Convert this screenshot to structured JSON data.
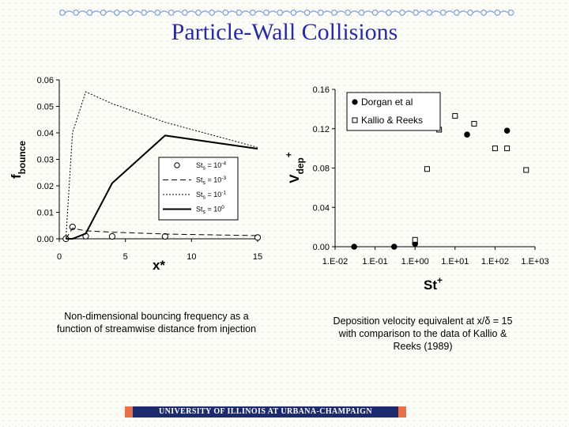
{
  "title": "Particle-Wall Collisions",
  "colors": {
    "title": "#2a2aa6",
    "deco": "#7f9ad4",
    "footer_bg": "#1c2a6e",
    "footer_accent": "#e8704a"
  },
  "chart_data": [
    {
      "type": "line",
      "xlabel": "x*",
      "ylabel": "fbounce",
      "xlim": [
        0,
        15
      ],
      "ylim": [
        0,
        0.06
      ],
      "xticks": [
        "0",
        "5",
        "10",
        "15"
      ],
      "yticks": [
        "0.00",
        "0.01",
        "0.02",
        "0.03",
        "0.04",
        "0.05",
        "0.06"
      ],
      "legend": "center-right",
      "grid": false,
      "series": [
        {
          "name": "Sts = 10-4",
          "label": {
            "base": "St",
            "sub": "s",
            "mid": " = 10",
            "sup": "-4"
          },
          "style": "markers",
          "x": [
            0.5,
            1,
            2,
            4,
            8,
            15
          ],
          "y": [
            0.0,
            0.0045,
            0.001,
            0.0009,
            0.0009,
            0.0005
          ]
        },
        {
          "name": "Sts = 10-3",
          "label": {
            "base": "St",
            "sub": "s",
            "mid": " = 10",
            "sup": "-3"
          },
          "style": "dashed",
          "x": [
            0.5,
            1,
            2,
            4,
            8,
            15
          ],
          "y": [
            0.0,
            0.004,
            0.003,
            0.0025,
            0.0018,
            0.0012
          ]
        },
        {
          "name": "Sts = 10-1",
          "label": {
            "base": "St",
            "sub": "s",
            "mid": " = 10",
            "sup": "-1"
          },
          "style": "dotted",
          "x": [
            0.5,
            1,
            2,
            4,
            8,
            15
          ],
          "y": [
            0.0,
            0.04,
            0.0555,
            0.051,
            0.044,
            0.0345
          ]
        },
        {
          "name": "Sts = 100",
          "label": {
            "base": "St",
            "sub": "s",
            "mid": " = 10",
            "sup": "0"
          },
          "style": "solid",
          "x": [
            0.5,
            1,
            2,
            4,
            8,
            15
          ],
          "y": [
            0.0,
            0.0,
            0.002,
            0.021,
            0.039,
            0.034
          ]
        }
      ]
    },
    {
      "type": "scatter",
      "xlabel": "St+",
      "ylabel": "Vdep+",
      "xscale": "log",
      "xlim": [
        0.01,
        1000
      ],
      "ylim": [
        0,
        0.16
      ],
      "xticks": [
        "1.E-02",
        "1.E-01",
        "1.E+00",
        "1.E+01",
        "1.E+02",
        "1.E+03"
      ],
      "yticks": [
        "0.00",
        "0.04",
        "0.08",
        "0.12",
        "0.16"
      ],
      "legend": "top-left",
      "grid": false,
      "series": [
        {
          "name": "Dorgan et al",
          "marker": "filled-circle",
          "x": [
            0.03,
            0.3,
            1.0,
            20,
            200
          ],
          "y": [
            0.0,
            0.0,
            0.003,
            0.114,
            0.118
          ]
        },
        {
          "name": "Kallio & Reeks",
          "marker": "open-square",
          "x": [
            1.0,
            2.0,
            4.0,
            10,
            30,
            100,
            200,
            600
          ],
          "y": [
            0.007,
            0.079,
            0.119,
            0.133,
            0.125,
            0.1,
            0.1,
            0.078
          ]
        }
      ]
    }
  ],
  "captions": {
    "left": [
      "Non-dimensional bouncing frequency as a",
      "function of streamwise distance from injection"
    ],
    "right": [
      "Deposition velocity equivalent at x/δ = 15",
      "with comparison to the data of Kallio &",
      "Reeks (1989)"
    ]
  },
  "footer": "UNIVERSITY OF ILLINOIS AT URBANA-CHAMPAIGN"
}
